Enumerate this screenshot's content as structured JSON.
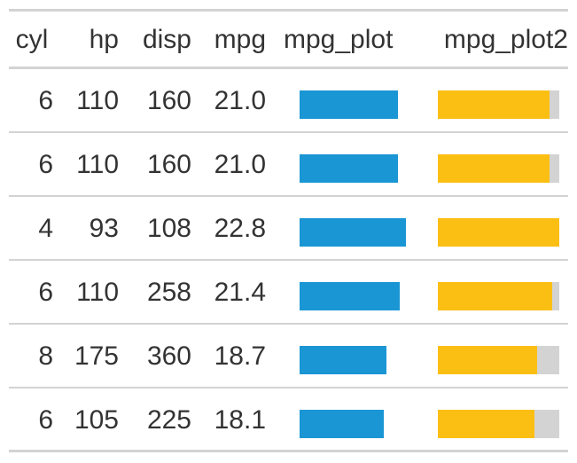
{
  "header": {
    "cyl": "cyl",
    "hp": "hp",
    "disp": "disp",
    "mpg": "mpg",
    "mpg_plot": "mpg_plot",
    "mpg_plot2": "mpg_plot2"
  },
  "colors": {
    "bar": "#1a96d4",
    "bar2": "#fbbf14",
    "track": "#d3d3d3"
  },
  "bar_max": 22.8,
  "rows": [
    {
      "cyl": "6",
      "hp": "110",
      "disp": "160",
      "mpg": "21.0",
      "mpg_value": 21.0
    },
    {
      "cyl": "6",
      "hp": "110",
      "disp": "160",
      "mpg": "21.0",
      "mpg_value": 21.0
    },
    {
      "cyl": "4",
      "hp": "93",
      "disp": "108",
      "mpg": "22.8",
      "mpg_value": 22.8
    },
    {
      "cyl": "6",
      "hp": "110",
      "disp": "258",
      "mpg": "21.4",
      "mpg_value": 21.4
    },
    {
      "cyl": "8",
      "hp": "175",
      "disp": "360",
      "mpg": "18.7",
      "mpg_value": 18.7
    },
    {
      "cyl": "6",
      "hp": "105",
      "disp": "225",
      "mpg": "18.1",
      "mpg_value": 18.1
    }
  ]
}
